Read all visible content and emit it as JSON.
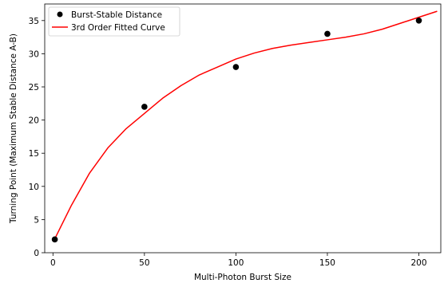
{
  "chart_data": {
    "type": "scatter",
    "xlabel": "Multi-Photon Burst Size",
    "ylabel": "Turning Point (Maximum Stable Distance A-B)",
    "xlim": [
      -4.5,
      212
    ],
    "ylim": [
      0,
      37.5
    ],
    "xticks": [
      0,
      50,
      100,
      150,
      200
    ],
    "yticks": [
      0,
      5,
      10,
      15,
      20,
      25,
      30,
      35
    ],
    "grid": false,
    "legend_position": "top-left",
    "series": [
      {
        "name": "Burst-Stable Distance",
        "kind": "scatter",
        "color": "#000000",
        "x": [
          1,
          50,
          100,
          150,
          200
        ],
        "y": [
          2,
          22,
          28,
          33,
          35
        ]
      },
      {
        "name": "3rd Order Fitted Curve",
        "kind": "line",
        "color": "#ff0000",
        "x": [
          1,
          10,
          20,
          30,
          40,
          50,
          60,
          70,
          80,
          90,
          100,
          110,
          120,
          130,
          140,
          150,
          160,
          170,
          180,
          190,
          200,
          210
        ],
        "y": [
          2.1,
          7.1,
          12.0,
          15.8,
          18.7,
          21.0,
          23.3,
          25.2,
          26.8,
          28.0,
          29.2,
          30.1,
          30.8,
          31.3,
          31.7,
          32.1,
          32.5,
          33.0,
          33.7,
          34.6,
          35.5,
          36.4
        ]
      }
    ]
  }
}
